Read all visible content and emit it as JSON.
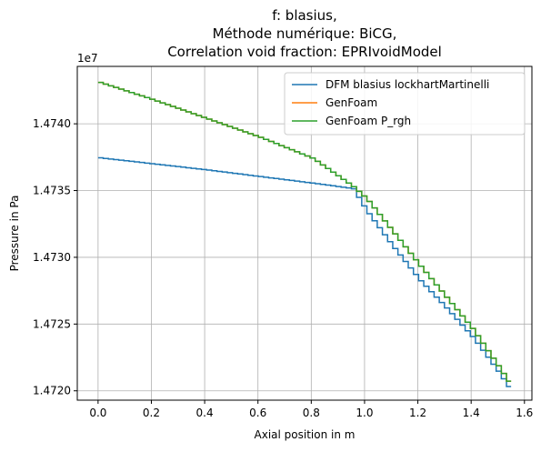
{
  "chart_data": {
    "type": "line",
    "title_lines": [
      "f: blasius,",
      "Méthode numérique: BiCG,",
      "Correlation void fraction: EPRIvoidModel"
    ],
    "xlabel": "Axial position in m",
    "ylabel": "Pressure in Pa",
    "offset_label": "1e7",
    "xlim": [
      -0.078,
      1.628
    ],
    "ylim": [
      14719300.0,
      14744300.0
    ],
    "x_ticks": [
      0.0,
      0.2,
      0.4,
      0.6,
      0.8,
      1.0,
      1.2,
      1.4,
      1.6
    ],
    "x_tick_labels": [
      "0.0",
      "0.2",
      "0.4",
      "0.6",
      "0.8",
      "1.0",
      "1.2",
      "1.4",
      "1.6"
    ],
    "y_ticks": [
      14720000,
      14725000,
      14730000,
      14735000,
      14740000
    ],
    "y_tick_labels": [
      "1.4720",
      "1.4725",
      "1.4730",
      "1.4735",
      "1.4740"
    ],
    "grid": true,
    "legend_position": "top-right",
    "step_width": 0.0194,
    "x_range": [
      0.0,
      1.55
    ],
    "series": [
      {
        "name": "DFM blasius lockhartMartinelli",
        "color": "#1f77b4",
        "points": [
          [
            0.0,
            14737450
          ],
          [
            0.2,
            14737000
          ],
          [
            0.4,
            14736550
          ],
          [
            0.6,
            14736050
          ],
          [
            0.8,
            14735550
          ],
          [
            0.95,
            14735150
          ],
          [
            1.0,
            14733500
          ],
          [
            1.1,
            14730800
          ],
          [
            1.2,
            14728300
          ],
          [
            1.3,
            14726200
          ],
          [
            1.4,
            14724000
          ],
          [
            1.5,
            14721300
          ],
          [
            1.55,
            14719800
          ]
        ]
      },
      {
        "name": "GenFoam",
        "color": "#ff7f0e",
        "points": [
          [
            0.0,
            14743100
          ],
          [
            0.2,
            14741800
          ],
          [
            0.4,
            14740400
          ],
          [
            0.6,
            14739000
          ],
          [
            0.8,
            14737400
          ],
          [
            0.95,
            14735300
          ],
          [
            1.0,
            14734400
          ],
          [
            1.1,
            14731900
          ],
          [
            1.2,
            14729400
          ],
          [
            1.3,
            14727000
          ],
          [
            1.4,
            14724600
          ],
          [
            1.5,
            14721700
          ],
          [
            1.55,
            14720200
          ]
        ]
      },
      {
        "name": "GenFoam P_rgh",
        "color": "#2ca02c",
        "points": [
          [
            0.0,
            14743100
          ],
          [
            0.2,
            14741800
          ],
          [
            0.4,
            14740400
          ],
          [
            0.6,
            14739000
          ],
          [
            0.8,
            14737400
          ],
          [
            0.95,
            14735300
          ],
          [
            1.0,
            14734400
          ],
          [
            1.1,
            14731900
          ],
          [
            1.2,
            14729400
          ],
          [
            1.3,
            14727000
          ],
          [
            1.4,
            14724600
          ],
          [
            1.5,
            14721700
          ],
          [
            1.55,
            14720200
          ]
        ]
      }
    ]
  }
}
